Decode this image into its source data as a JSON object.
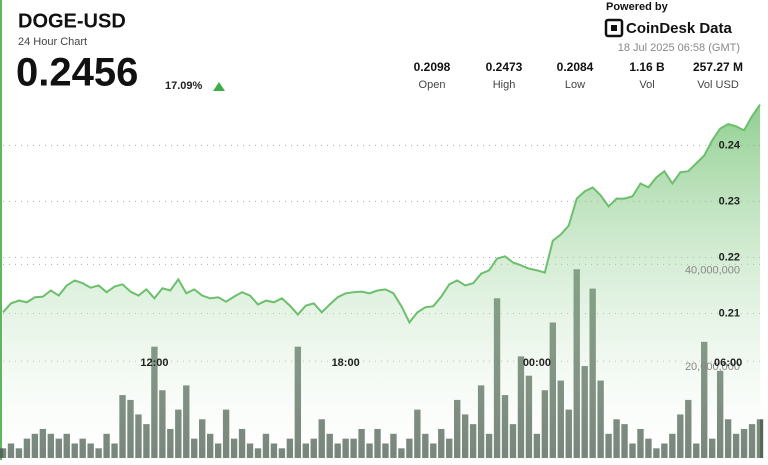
{
  "header": {
    "title": "DOGE-USD",
    "subtitle": "24 Hour Chart",
    "price": "0.2456",
    "change": "17.09%",
    "stats": [
      {
        "value": "0.2098",
        "label": "Open"
      },
      {
        "value": "0.2473",
        "label": "High"
      },
      {
        "value": "0.2084",
        "label": "Low"
      },
      {
        "value": "1.16 B",
        "label": "Vol"
      },
      {
        "value": "257.27 M",
        "label": "Vol USD"
      }
    ],
    "powered_by": "Powered by",
    "brand": "CoinDesk Data",
    "timestamp": "18 Jul 2025 06:58 (GMT)"
  },
  "chart_data": {
    "type": "line",
    "categories": [
      null,
      null,
      null,
      null,
      null,
      null,
      null,
      null,
      null,
      null,
      null,
      null,
      null,
      null,
      null,
      null,
      null,
      null,
      null,
      "12:00",
      null,
      null,
      null,
      null,
      null,
      null,
      null,
      null,
      null,
      null,
      null,
      null,
      null,
      null,
      null,
      null,
      null,
      null,
      null,
      null,
      null,
      null,
      null,
      "18:00",
      null,
      null,
      null,
      null,
      null,
      null,
      null,
      null,
      null,
      null,
      null,
      null,
      null,
      null,
      null,
      null,
      null,
      null,
      null,
      null,
      null,
      null,
      null,
      "00:00",
      null,
      null,
      null,
      null,
      null,
      null,
      null,
      null,
      null,
      null,
      null,
      null,
      null,
      null,
      null,
      null,
      null,
      null,
      null,
      null,
      null,
      null,
      null,
      "06:00",
      null,
      null,
      null,
      null
    ],
    "series": [
      {
        "type": "line",
        "color": "#6cbf6c",
        "values": [
          0.2102,
          0.2118,
          0.2123,
          0.212,
          0.2129,
          0.213,
          0.2141,
          0.2132,
          0.215,
          0.2159,
          0.2154,
          0.2146,
          0.215,
          0.2138,
          0.2148,
          0.2152,
          0.2139,
          0.2132,
          0.2143,
          0.2127,
          0.2145,
          0.2141,
          0.2161,
          0.2136,
          0.2143,
          0.2132,
          0.2127,
          0.2129,
          0.2121,
          0.213,
          0.2138,
          0.2132,
          0.2116,
          0.2123,
          0.212,
          0.2127,
          0.2114,
          0.2098,
          0.2114,
          0.2118,
          0.2102,
          0.2116,
          0.2129,
          0.2136,
          0.2138,
          0.2139,
          0.2136,
          0.2141,
          0.2143,
          0.2136,
          0.2113,
          0.2084,
          0.2102,
          0.2111,
          0.2113,
          0.213,
          0.2152,
          0.2159,
          0.215,
          0.2154,
          0.2171,
          0.2177,
          0.2198,
          0.2202,
          0.2191,
          0.2186,
          0.218,
          0.2177,
          0.2173,
          0.223,
          0.2241,
          0.2257,
          0.2305,
          0.2318,
          0.2325,
          0.2311,
          0.2291,
          0.2305,
          0.2305,
          0.2309,
          0.2332,
          0.2325,
          0.2343,
          0.2354,
          0.2332,
          0.2352,
          0.2354,
          0.2368,
          0.2382,
          0.2409,
          0.243,
          0.2438,
          0.2434,
          0.2427,
          0.2452,
          0.2473
        ]
      },
      {
        "type": "bar",
        "axis": "y2",
        "color": "#56675a",
        "values": [
          2000000.0,
          3000000.0,
          2000000.0,
          4000000.0,
          5000000.0,
          6000000.0,
          5000000.0,
          4000000.0,
          5000000.0,
          3000000.0,
          4000000.0,
          3000000.0,
          2000000.0,
          5000000.0,
          3000000.0,
          13000000.0,
          12000000.0,
          9000000.0,
          7000000.0,
          23000000.0,
          14000000.0,
          6000000.0,
          10000000.0,
          15000000.0,
          4000000.0,
          8000000.0,
          5000000.0,
          3000000.0,
          10000000.0,
          4000000.0,
          6000000.0,
          3000000.0,
          2000000.0,
          5000000.0,
          3000000.0,
          2000000.0,
          4000000.0,
          23000000.0,
          3000000.0,
          4000000.0,
          8000000.0,
          5000000.0,
          3000000.0,
          4000000.0,
          4000000.0,
          6000000.0,
          3000000.0,
          6000000.0,
          3000000.0,
          5000000.0,
          2000000.0,
          4000000.0,
          10000000.0,
          5000000.0,
          3000000.0,
          6000000.0,
          4000000.0,
          12000000.0,
          9000000.0,
          7000000.0,
          15000000.0,
          5000000.0,
          33000000.0,
          13000000.0,
          7000000.0,
          21000000.0,
          17000000.0,
          5000000.0,
          14000000.0,
          28000000.0,
          16000000.0,
          10000000.0,
          39000000.0,
          19000000.0,
          35000000.0,
          16000000.0,
          5000000.0,
          8000000.0,
          7000000.0,
          3000000.0,
          6000000.0,
          4000000.0,
          2000000.0,
          3000000.0,
          5000000.0,
          9000000.0,
          12000000.0,
          3000000.0,
          24000000.0,
          4000000.0,
          18000000.0,
          8000000.0,
          5000000.0,
          6000000.0,
          7000000.0,
          8000000.0
        ]
      }
    ],
    "ylim": [
      0.1842,
      0.249
    ],
    "yticks": [
      0.21,
      0.22,
      0.23,
      0.24
    ],
    "y2lim": [
      0,
      75000000
    ],
    "y2ticks": [
      {
        "value": 20000000,
        "label": "20,000,000"
      },
      {
        "value": 40000000,
        "label": "40,000,000"
      }
    ],
    "grid": true
  }
}
